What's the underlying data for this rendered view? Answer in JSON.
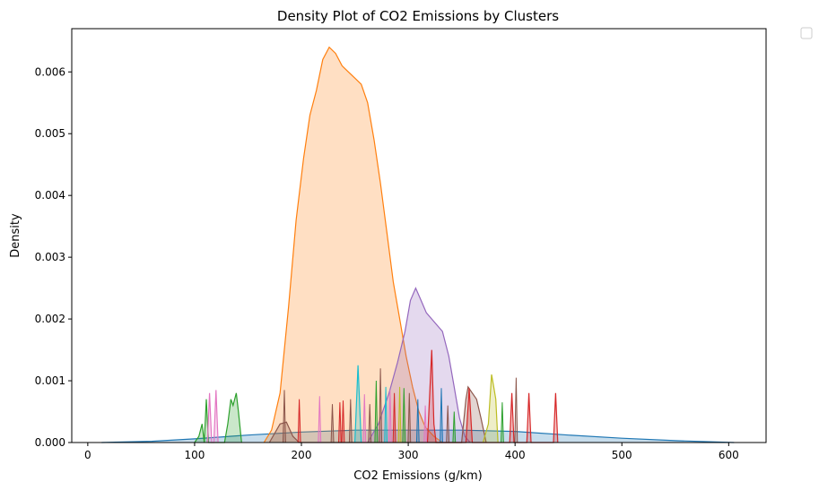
{
  "chart_data": {
    "type": "area",
    "title": "Density Plot of CO2 Emissions by Clusters",
    "xlabel": "CO2 Emissions (g/km)",
    "ylabel": "Density",
    "xlim": [
      -15,
      635
    ],
    "ylim": [
      0,
      0.0067
    ],
    "x_ticks": [
      0,
      100,
      200,
      300,
      400,
      500,
      600
    ],
    "x_tick_labels": [
      "0",
      "100",
      "200",
      "300",
      "400",
      "500",
      "600"
    ],
    "y_ticks": [
      0,
      0.001,
      0.002,
      0.003,
      0.004,
      0.005,
      0.006
    ],
    "y_tick_labels": [
      "0.000",
      "0.001",
      "0.002",
      "0.003",
      "0.004",
      "0.005",
      "0.006"
    ],
    "grid": false,
    "legend": {
      "placement": "outside-top-right",
      "entries": []
    },
    "series": [
      {
        "color": "#1f77b4",
        "points": [
          [
            13,
            0
          ],
          [
            60,
            2e-05
          ],
          [
            100,
            6e-05
          ],
          [
            150,
            0.00012
          ],
          [
            200,
            0.00017
          ],
          [
            250,
            0.0002
          ],
          [
            300,
            0.0002
          ],
          [
            350,
            0.0002
          ],
          [
            400,
            0.00018
          ],
          [
            450,
            0.00012
          ],
          [
            500,
            7e-05
          ],
          [
            550,
            3e-05
          ],
          [
            605,
            0
          ]
        ]
      },
      {
        "color": "#ff7f0e",
        "points": [
          [
            165,
            0
          ],
          [
            172,
            0.0002
          ],
          [
            180,
            0.0008
          ],
          [
            188,
            0.0022
          ],
          [
            195,
            0.0036
          ],
          [
            202,
            0.0046
          ],
          [
            208,
            0.0053
          ],
          [
            214,
            0.0057
          ],
          [
            220,
            0.0062
          ],
          [
            226,
            0.0064
          ],
          [
            232,
            0.0063
          ],
          [
            238,
            0.0061
          ],
          [
            244,
            0.006
          ],
          [
            250,
            0.0059
          ],
          [
            256,
            0.0058
          ],
          [
            262,
            0.0055
          ],
          [
            268,
            0.0049
          ],
          [
            274,
            0.0042
          ],
          [
            280,
            0.0034
          ],
          [
            286,
            0.0026
          ],
          [
            292,
            0.002
          ],
          [
            298,
            0.0014
          ],
          [
            304,
            0.0009
          ],
          [
            310,
            0.0005
          ],
          [
            316,
            0.00025
          ],
          [
            324,
            0.0001
          ],
          [
            332,
            0
          ]
        ]
      },
      {
        "color": "#9467bd",
        "points": [
          [
            262,
            0
          ],
          [
            272,
            0.0003
          ],
          [
            282,
            0.0008
          ],
          [
            290,
            0.0013
          ],
          [
            297,
            0.0018
          ],
          [
            302,
            0.0023
          ],
          [
            307,
            0.0025
          ],
          [
            312,
            0.0023
          ],
          [
            317,
            0.0021
          ],
          [
            322,
            0.002
          ],
          [
            327,
            0.0019
          ],
          [
            332,
            0.0018
          ],
          [
            338,
            0.0014
          ],
          [
            343,
            0.0009
          ],
          [
            348,
            0.0004
          ],
          [
            353,
            0.0001
          ],
          [
            358,
            0
          ]
        ]
      },
      {
        "color": "#2ca02c",
        "points": [
          [
            100,
            0
          ],
          [
            104,
            0.0001
          ],
          [
            107,
            0.0003
          ],
          [
            109,
            0
          ],
          [
            111,
            0.0007
          ],
          [
            113,
            0
          ],
          [
            128,
            0
          ],
          [
            131,
            0.0003
          ],
          [
            134,
            0.0007
          ],
          [
            136,
            0.0006
          ],
          [
            139,
            0.0008
          ],
          [
            141,
            0.0005
          ],
          [
            144,
            0
          ]
        ]
      },
      {
        "color": "#e377c2",
        "points": [
          [
            112,
            0
          ],
          [
            114,
            0.0008
          ],
          [
            116,
            0
          ],
          [
            118,
            0
          ],
          [
            120,
            0.00085
          ],
          [
            122,
            0
          ]
        ]
      },
      {
        "color": "#8c564b",
        "points": [
          [
            170,
            0
          ],
          [
            180,
            0.0003
          ],
          [
            186,
            0.00033
          ],
          [
            192,
            0.0001
          ],
          [
            198,
            0
          ],
          [
            350,
            0
          ],
          [
            354,
            0.0007
          ],
          [
            356,
            0.0009
          ],
          [
            360,
            0.0008
          ],
          [
            364,
            0.0007
          ],
          [
            368,
            0.0004
          ],
          [
            373,
            0
          ]
        ]
      },
      {
        "color": "#d62728",
        "points": [
          [
            318,
            0
          ],
          [
            322,
            0.0015
          ],
          [
            324,
            0.0003
          ],
          [
            326,
            0
          ],
          [
            354,
            0
          ],
          [
            357,
            0.00088
          ],
          [
            360,
            0
          ],
          [
            395,
            0
          ],
          [
            397,
            0.0008
          ],
          [
            399,
            0
          ],
          [
            411,
            0
          ],
          [
            413,
            0.0008
          ],
          [
            415,
            0
          ],
          [
            436,
            0
          ],
          [
            438,
            0.0008
          ],
          [
            440,
            0
          ]
        ]
      },
      {
        "color": "#bcbd22",
        "points": [
          [
            370,
            0
          ],
          [
            375,
            0.0003
          ],
          [
            378,
            0.0011
          ],
          [
            380,
            0.0009
          ],
          [
            382,
            0.0007
          ],
          [
            384,
            0
          ]
        ]
      },
      {
        "color": "#17becf",
        "points": [
          [
            250,
            0
          ],
          [
            253,
            0.00125
          ],
          [
            256,
            0
          ]
        ]
      }
    ],
    "spikes": [
      {
        "x": 184,
        "y": 0.00085,
        "color": "#8c564b"
      },
      {
        "x": 198,
        "y": 0.0007,
        "color": "#d62728"
      },
      {
        "x": 217,
        "y": 0.00075,
        "color": "#e377c2"
      },
      {
        "x": 229,
        "y": 0.00062,
        "color": "#8c564b"
      },
      {
        "x": 236,
        "y": 0.00065,
        "color": "#d62728"
      },
      {
        "x": 239,
        "y": 0.00068,
        "color": "#d62728"
      },
      {
        "x": 246,
        "y": 0.0007,
        "color": "#8c564b"
      },
      {
        "x": 259,
        "y": 0.00078,
        "color": "#e377c2"
      },
      {
        "x": 264,
        "y": 0.00062,
        "color": "#8c564b"
      },
      {
        "x": 270,
        "y": 0.001,
        "color": "#2ca02c"
      },
      {
        "x": 274,
        "y": 0.0012,
        "color": "#8c564b"
      },
      {
        "x": 279,
        "y": 0.0009,
        "color": "#17becf"
      },
      {
        "x": 283,
        "y": 0.00085,
        "color": "#e377c2"
      },
      {
        "x": 287,
        "y": 0.0008,
        "color": "#d62728"
      },
      {
        "x": 292,
        "y": 0.0009,
        "color": "#bcbd22"
      },
      {
        "x": 296,
        "y": 0.00088,
        "color": "#2ca02c"
      },
      {
        "x": 301,
        "y": 0.0008,
        "color": "#8c564b"
      },
      {
        "x": 309,
        "y": 0.0007,
        "color": "#1f77b4"
      },
      {
        "x": 316,
        "y": 0.0006,
        "color": "#e377c2"
      },
      {
        "x": 331,
        "y": 0.00088,
        "color": "#1f77b4"
      },
      {
        "x": 337,
        "y": 0.0006,
        "color": "#8c564b"
      },
      {
        "x": 343,
        "y": 0.0005,
        "color": "#2ca02c"
      },
      {
        "x": 388,
        "y": 0.00065,
        "color": "#2ca02c"
      },
      {
        "x": 401,
        "y": 0.00105,
        "color": "#8c564b"
      }
    ]
  }
}
